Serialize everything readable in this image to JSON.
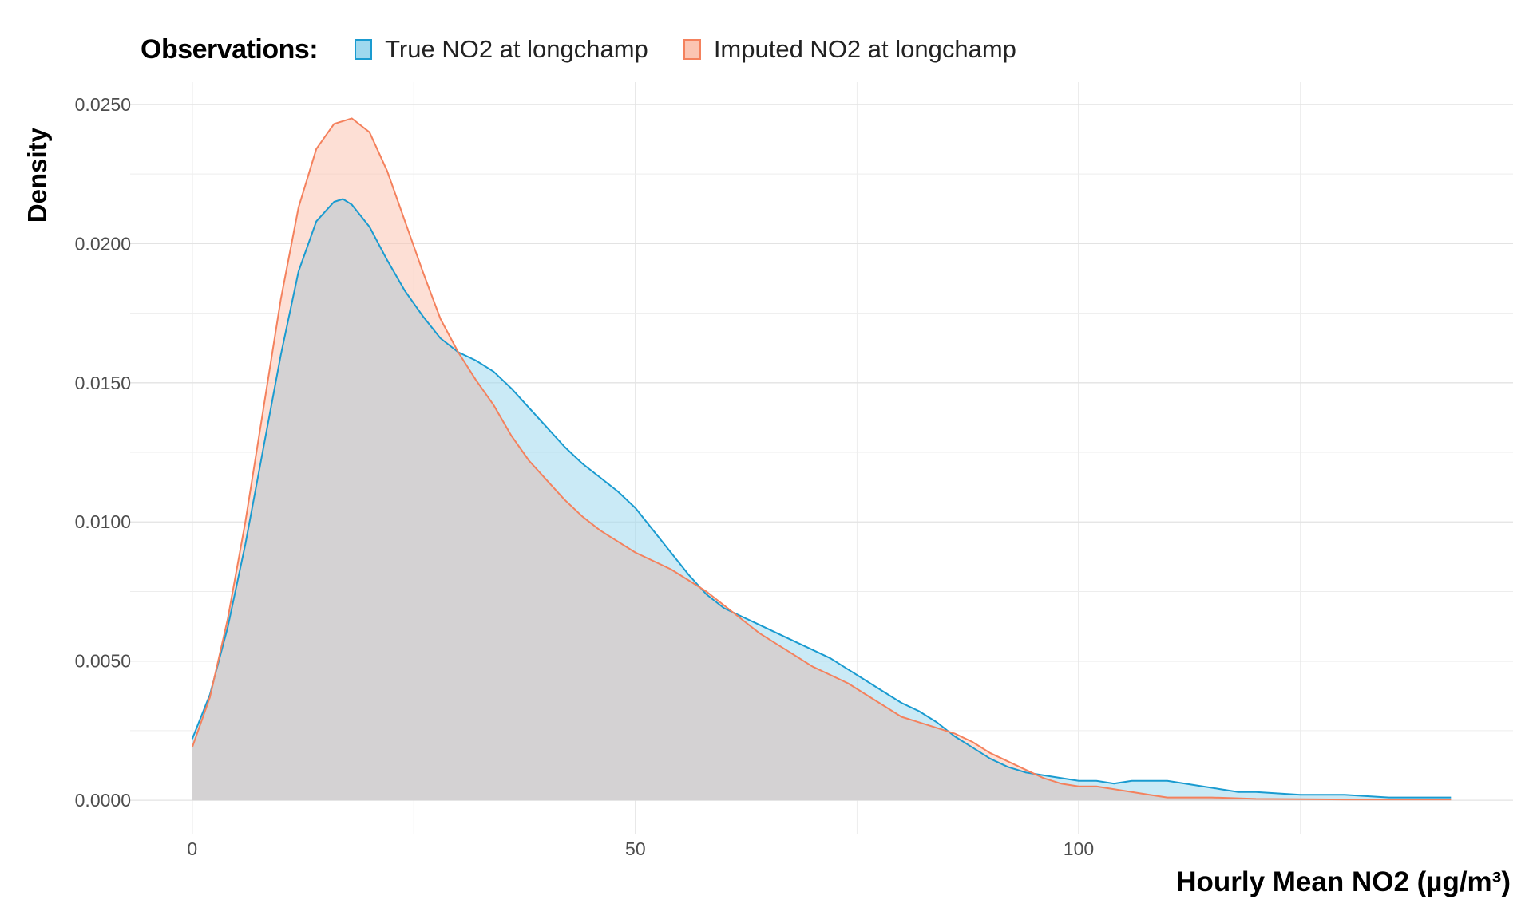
{
  "chart_data": {
    "type": "area",
    "title": "",
    "legend": {
      "title": "Observations:",
      "placement": "top-left",
      "entries": [
        {
          "label": "True NO2 at longchamp",
          "line_color": "#1a9bd0",
          "fill_color": "#9fd8ee"
        },
        {
          "label": "Imputed NO2 at longchamp",
          "line_color": "#f4815d",
          "fill_color": "#fbc5b3"
        }
      ]
    },
    "xlabel": "Hourly Mean NO2 (µg/m³)",
    "ylabel": "Density",
    "xlim": [
      -7,
      149
    ],
    "ylim": [
      -0.0012,
      0.0258
    ],
    "x_ticks": [
      0,
      50,
      100
    ],
    "x_tick_labels": [
      "0",
      "50",
      "100"
    ],
    "y_ticks": [
      0.0,
      0.005,
      0.01,
      0.015,
      0.02,
      0.025
    ],
    "y_tick_labels": [
      "0.0000",
      "0.0050",
      "0.0100",
      "0.0150",
      "0.0200",
      "0.0250"
    ],
    "grid": true,
    "series": [
      {
        "name": "True NO2 at longchamp",
        "color": "#1a9bd0",
        "points": [
          [
            0,
            0.0022
          ],
          [
            2,
            0.0038
          ],
          [
            4,
            0.0062
          ],
          [
            6,
            0.0092
          ],
          [
            8,
            0.0126
          ],
          [
            10,
            0.016
          ],
          [
            12,
            0.019
          ],
          [
            14,
            0.0208
          ],
          [
            16,
            0.0215
          ],
          [
            17,
            0.0216
          ],
          [
            18,
            0.0214
          ],
          [
            20,
            0.0206
          ],
          [
            22,
            0.0194
          ],
          [
            24,
            0.0183
          ],
          [
            26,
            0.0174
          ],
          [
            28,
            0.0166
          ],
          [
            30,
            0.0161
          ],
          [
            32,
            0.0158
          ],
          [
            34,
            0.0154
          ],
          [
            36,
            0.0148
          ],
          [
            38,
            0.0141
          ],
          [
            40,
            0.0134
          ],
          [
            42,
            0.0127
          ],
          [
            44,
            0.0121
          ],
          [
            46,
            0.0116
          ],
          [
            48,
            0.0111
          ],
          [
            50,
            0.0105
          ],
          [
            52,
            0.0097
          ],
          [
            54,
            0.0089
          ],
          [
            56,
            0.0081
          ],
          [
            58,
            0.0074
          ],
          [
            60,
            0.0069
          ],
          [
            62,
            0.0066
          ],
          [
            64,
            0.0063
          ],
          [
            66,
            0.006
          ],
          [
            68,
            0.0057
          ],
          [
            70,
            0.0054
          ],
          [
            72,
            0.0051
          ],
          [
            74,
            0.0047
          ],
          [
            76,
            0.0043
          ],
          [
            78,
            0.0039
          ],
          [
            80,
            0.0035
          ],
          [
            82,
            0.0032
          ],
          [
            84,
            0.0028
          ],
          [
            86,
            0.0023
          ],
          [
            88,
            0.0019
          ],
          [
            90,
            0.0015
          ],
          [
            92,
            0.0012
          ],
          [
            94,
            0.001
          ],
          [
            96,
            0.0009
          ],
          [
            98,
            0.0008
          ],
          [
            100,
            0.0007
          ],
          [
            102,
            0.0007
          ],
          [
            104,
            0.0006
          ],
          [
            106,
            0.0007
          ],
          [
            108,
            0.0007
          ],
          [
            110,
            0.0007
          ],
          [
            112,
            0.0006
          ],
          [
            114,
            0.0005
          ],
          [
            116,
            0.0004
          ],
          [
            118,
            0.0003
          ],
          [
            120,
            0.0003
          ],
          [
            125,
            0.0002
          ],
          [
            130,
            0.0002
          ],
          [
            135,
            0.0001
          ],
          [
            142,
            0.0001
          ]
        ]
      },
      {
        "name": "Imputed NO2 at longchamp",
        "color": "#f4815d",
        "points": [
          [
            0,
            0.0019
          ],
          [
            2,
            0.0037
          ],
          [
            4,
            0.0065
          ],
          [
            6,
            0.01
          ],
          [
            8,
            0.014
          ],
          [
            10,
            0.018
          ],
          [
            12,
            0.0213
          ],
          [
            14,
            0.0234
          ],
          [
            16,
            0.0243
          ],
          [
            18,
            0.0245
          ],
          [
            20,
            0.024
          ],
          [
            22,
            0.0226
          ],
          [
            24,
            0.0208
          ],
          [
            26,
            0.019
          ],
          [
            28,
            0.0173
          ],
          [
            30,
            0.0161
          ],
          [
            32,
            0.0151
          ],
          [
            34,
            0.0142
          ],
          [
            36,
            0.0131
          ],
          [
            38,
            0.0122
          ],
          [
            40,
            0.0115
          ],
          [
            42,
            0.0108
          ],
          [
            44,
            0.0102
          ],
          [
            46,
            0.0097
          ],
          [
            48,
            0.0093
          ],
          [
            50,
            0.0089
          ],
          [
            52,
            0.0086
          ],
          [
            54,
            0.0083
          ],
          [
            56,
            0.0079
          ],
          [
            58,
            0.0075
          ],
          [
            60,
            0.007
          ],
          [
            62,
            0.0065
          ],
          [
            64,
            0.006
          ],
          [
            66,
            0.0056
          ],
          [
            68,
            0.0052
          ],
          [
            70,
            0.0048
          ],
          [
            72,
            0.0045
          ],
          [
            74,
            0.0042
          ],
          [
            76,
            0.0038
          ],
          [
            78,
            0.0034
          ],
          [
            80,
            0.003
          ],
          [
            82,
            0.0028
          ],
          [
            84,
            0.0026
          ],
          [
            86,
            0.0024
          ],
          [
            88,
            0.0021
          ],
          [
            90,
            0.0017
          ],
          [
            92,
            0.0014
          ],
          [
            94,
            0.0011
          ],
          [
            96,
            0.0008
          ],
          [
            98,
            0.0006
          ],
          [
            100,
            0.0005
          ],
          [
            102,
            0.0005
          ],
          [
            104,
            0.0004
          ],
          [
            106,
            0.0003
          ],
          [
            108,
            0.0002
          ],
          [
            110,
            0.0001
          ],
          [
            115,
            0.0001
          ],
          [
            120,
            5e-05
          ],
          [
            130,
            3e-05
          ],
          [
            142,
            3e-05
          ]
        ]
      }
    ]
  }
}
